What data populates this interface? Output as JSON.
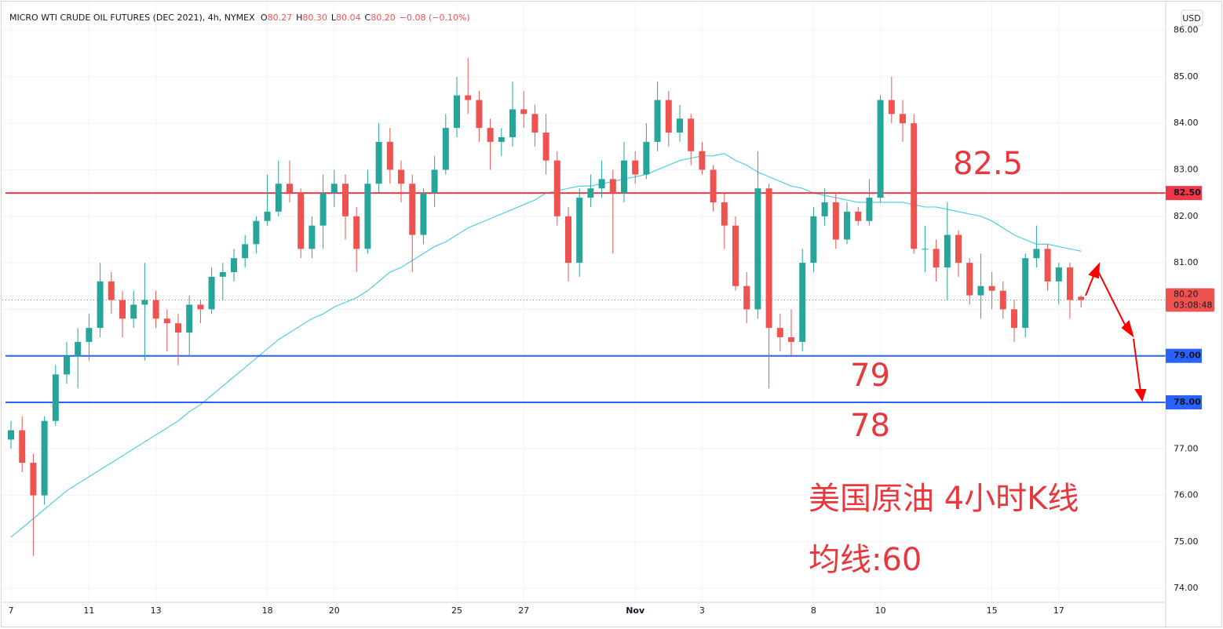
{
  "chart_data": {
    "type": "candlestick",
    "header": {
      "title": "MICRO WTI CRUDE OIL FUTURES (DEC 2021), 4h, NYMEX",
      "o_label": "O",
      "o": "80.27",
      "h_label": "H",
      "h": "80.30",
      "l_label": "L",
      "l": "80.04",
      "c_label": "C",
      "c": "80.20",
      "change": "−0.08 (−0.10%)"
    },
    "currency": "USD",
    "categories": [
      "7",
      null,
      null,
      null,
      null,
      null,
      null,
      "11",
      null,
      null,
      null,
      null,
      null,
      "13",
      null,
      null,
      null,
      null,
      null,
      null,
      null,
      null,
      null,
      "18",
      null,
      null,
      null,
      null,
      null,
      "20",
      null,
      null,
      null,
      null,
      null,
      null,
      null,
      null,
      null,
      null,
      "25",
      null,
      null,
      null,
      null,
      null,
      "27",
      null,
      null,
      null,
      null,
      null,
      null,
      null,
      null,
      null,
      "Nov",
      null,
      null,
      null,
      null,
      null,
      "3",
      null,
      null,
      null,
      null,
      null,
      null,
      null,
      null,
      null,
      "8",
      null,
      null,
      null,
      null,
      null,
      "10",
      null,
      null,
      null,
      null,
      null,
      null,
      null,
      null,
      null,
      "15",
      null,
      null,
      null,
      null,
      null,
      "17",
      null,
      null
    ],
    "candles": [
      [
        77.2,
        77.6,
        77.0,
        77.4
      ],
      [
        77.4,
        77.7,
        76.5,
        76.7
      ],
      [
        76.7,
        76.9,
        74.7,
        76.0
      ],
      [
        76.0,
        77.7,
        75.8,
        77.6
      ],
      [
        77.6,
        78.8,
        77.5,
        78.6
      ],
      [
        78.6,
        79.3,
        78.4,
        79.0
      ],
      [
        79.0,
        79.6,
        78.3,
        79.3
      ],
      [
        79.3,
        79.9,
        78.9,
        79.6
      ],
      [
        79.6,
        81.0,
        79.4,
        80.6
      ],
      [
        80.6,
        80.8,
        79.9,
        80.2
      ],
      [
        80.2,
        80.4,
        79.4,
        79.8
      ],
      [
        79.8,
        80.4,
        79.6,
        80.1
      ],
      [
        80.1,
        81.0,
        78.9,
        80.2
      ],
      [
        80.2,
        80.4,
        79.6,
        79.8
      ],
      [
        79.8,
        80.0,
        79.1,
        79.7
      ],
      [
        79.7,
        79.9,
        78.8,
        79.5
      ],
      [
        79.5,
        80.3,
        79.0,
        80.1
      ],
      [
        80.1,
        80.2,
        79.7,
        80.0
      ],
      [
        80.0,
        80.9,
        79.9,
        80.7
      ],
      [
        80.7,
        81.0,
        80.2,
        80.8
      ],
      [
        80.8,
        81.3,
        80.6,
        81.1
      ],
      [
        81.1,
        81.6,
        80.9,
        81.4
      ],
      [
        81.4,
        82.0,
        81.2,
        81.9
      ],
      [
        81.9,
        82.9,
        81.8,
        82.1
      ],
      [
        82.1,
        83.2,
        82.0,
        82.7
      ],
      [
        82.7,
        83.2,
        82.3,
        82.5
      ],
      [
        82.5,
        82.6,
        81.1,
        81.3
      ],
      [
        81.3,
        82.0,
        81.1,
        81.8
      ],
      [
        81.8,
        82.9,
        81.3,
        82.5
      ],
      [
        82.5,
        83.0,
        82.2,
        82.7
      ],
      [
        82.7,
        82.9,
        81.5,
        82.0
      ],
      [
        82.0,
        82.2,
        80.8,
        81.3
      ],
      [
        81.3,
        83.0,
        81.2,
        82.7
      ],
      [
        82.7,
        84.0,
        82.5,
        83.6
      ],
      [
        83.6,
        83.9,
        82.7,
        83.0
      ],
      [
        83.0,
        83.2,
        82.3,
        82.7
      ],
      [
        82.7,
        82.9,
        80.8,
        81.6
      ],
      [
        81.6,
        82.6,
        81.4,
        82.5
      ],
      [
        82.5,
        83.3,
        82.2,
        83.0
      ],
      [
        83.0,
        84.2,
        82.9,
        83.9
      ],
      [
        83.9,
        85.0,
        83.7,
        84.6
      ],
      [
        84.6,
        85.4,
        84.2,
        84.5
      ],
      [
        84.5,
        84.7,
        83.6,
        83.9
      ],
      [
        83.9,
        84.1,
        83.0,
        83.6
      ],
      [
        83.6,
        83.9,
        83.3,
        83.7
      ],
      [
        83.7,
        84.9,
        83.5,
        84.3
      ],
      [
        84.3,
        84.7,
        83.9,
        84.2
      ],
      [
        84.2,
        84.4,
        83.5,
        83.8
      ],
      [
        83.8,
        84.2,
        82.9,
        83.2
      ],
      [
        83.2,
        83.4,
        81.8,
        82.0
      ],
      [
        82.0,
        82.2,
        80.6,
        81.0
      ],
      [
        81.0,
        82.6,
        80.7,
        82.4
      ],
      [
        82.4,
        82.9,
        82.2,
        82.6
      ],
      [
        82.6,
        83.2,
        82.4,
        82.8
      ],
      [
        82.8,
        83.0,
        81.2,
        82.5
      ],
      [
        82.5,
        83.6,
        82.3,
        83.2
      ],
      [
        83.2,
        83.4,
        82.7,
        82.9
      ],
      [
        82.9,
        84.0,
        82.8,
        83.6
      ],
      [
        83.6,
        84.9,
        83.4,
        84.5
      ],
      [
        84.5,
        84.7,
        83.5,
        83.8
      ],
      [
        83.8,
        84.4,
        83.6,
        84.1
      ],
      [
        84.1,
        84.2,
        83.1,
        83.4
      ],
      [
        83.4,
        83.6,
        82.9,
        83.0
      ],
      [
        83.0,
        83.1,
        82.1,
        82.3
      ],
      [
        82.3,
        82.5,
        81.3,
        81.8
      ],
      [
        81.8,
        82.0,
        80.4,
        80.5
      ],
      [
        80.5,
        80.8,
        79.7,
        80.0
      ],
      [
        80.0,
        83.4,
        79.8,
        82.6
      ],
      [
        82.6,
        82.7,
        78.3,
        79.6
      ],
      [
        79.6,
        79.9,
        79.1,
        79.4
      ],
      [
        79.4,
        80.0,
        79.0,
        79.3
      ],
      [
        79.3,
        81.3,
        79.1,
        81.0
      ],
      [
        81.0,
        82.2,
        80.8,
        82.0
      ],
      [
        82.0,
        82.6,
        81.8,
        82.3
      ],
      [
        82.3,
        82.5,
        81.3,
        81.5
      ],
      [
        81.5,
        82.3,
        81.4,
        82.1
      ],
      [
        82.1,
        82.2,
        81.8,
        81.9
      ],
      [
        81.9,
        82.8,
        81.8,
        82.4
      ],
      [
        82.4,
        84.6,
        82.3,
        84.5
      ],
      [
        84.5,
        85.0,
        84.0,
        84.2
      ],
      [
        84.2,
        84.5,
        83.6,
        84.0
      ],
      [
        84.0,
        84.2,
        81.2,
        81.3
      ],
      [
        81.3,
        81.8,
        80.8,
        81.3
      ],
      [
        81.3,
        81.5,
        80.6,
        80.9
      ],
      [
        80.9,
        82.3,
        80.2,
        81.6
      ],
      [
        81.6,
        81.7,
        80.7,
        81.0
      ],
      [
        81.0,
        81.1,
        80.1,
        80.3
      ],
      [
        80.3,
        81.2,
        79.8,
        80.5
      ],
      [
        80.5,
        80.8,
        80.0,
        80.4
      ],
      [
        80.4,
        80.6,
        79.8,
        80.0
      ],
      [
        80.0,
        80.2,
        79.3,
        79.6
      ],
      [
        79.6,
        81.2,
        79.4,
        81.1
      ],
      [
        81.1,
        81.8,
        80.9,
        81.3
      ],
      [
        81.3,
        81.4,
        80.4,
        80.6
      ],
      [
        80.6,
        81.0,
        80.1,
        80.9
      ],
      [
        80.9,
        81.0,
        79.8,
        80.2
      ],
      [
        80.27,
        80.3,
        80.04,
        80.2
      ]
    ],
    "up_color": "#26a69a",
    "down_color": "#ef5350",
    "ma": {
      "color": "#4dd0e1",
      "values": [
        75.1,
        75.3,
        75.5,
        75.7,
        75.9,
        76.1,
        76.25,
        76.4,
        76.55,
        76.7,
        76.85,
        77.0,
        77.15,
        77.3,
        77.45,
        77.6,
        77.8,
        77.95,
        78.15,
        78.35,
        78.55,
        78.75,
        78.95,
        79.15,
        79.35,
        79.5,
        79.65,
        79.8,
        79.9,
        80.05,
        80.15,
        80.25,
        80.4,
        80.6,
        80.8,
        80.9,
        81.05,
        81.2,
        81.35,
        81.45,
        81.6,
        81.75,
        81.85,
        81.95,
        82.05,
        82.15,
        82.25,
        82.35,
        82.5,
        82.55,
        82.6,
        82.65,
        82.65,
        82.7,
        82.75,
        82.8,
        82.85,
        82.9,
        83.0,
        83.1,
        83.2,
        83.25,
        83.3,
        83.3,
        83.35,
        83.2,
        83.1,
        82.95,
        82.85,
        82.75,
        82.65,
        82.6,
        82.5,
        82.45,
        82.4,
        82.35,
        82.3,
        82.3,
        82.3,
        82.3,
        82.3,
        82.25,
        82.2,
        82.2,
        82.15,
        82.1,
        82.05,
        82.0,
        81.9,
        81.75,
        81.6,
        81.5,
        81.4,
        81.4,
        81.35,
        81.3,
        81.25
      ]
    },
    "ylim": [
      73.7,
      86.6
    ],
    "yticks": [
      {
        "value": 86,
        "label": "86.00"
      },
      {
        "value": 85,
        "label": "85.00"
      },
      {
        "value": 84,
        "label": "84.00"
      },
      {
        "value": 83,
        "label": "83.00"
      },
      {
        "value": 82,
        "label": "82.00"
      },
      {
        "value": 81,
        "label": "81.00"
      },
      {
        "value": 80,
        "label": "80.00"
      },
      {
        "value": 79,
        "label": "79.00"
      },
      {
        "value": 78,
        "label": "78.00"
      },
      {
        "value": 77,
        "label": "77.00"
      },
      {
        "value": 76,
        "label": "76.00"
      },
      {
        "value": 75,
        "label": "75.00"
      },
      {
        "value": 74,
        "label": "74.00"
      }
    ],
    "grid": true,
    "levels": [
      {
        "value": 82.5,
        "label": "82.50",
        "color": "#f23645"
      },
      {
        "value": 79,
        "label": "79.00",
        "color": "#2962ff"
      },
      {
        "value": 78,
        "label": "78.00",
        "color": "#2962ff"
      }
    ],
    "last": {
      "value": 80.2,
      "label": "80.20",
      "countdown": "03:08:48",
      "color": "#ef5350"
    },
    "annotations": [
      "82.5",
      "79",
      "78",
      "美国原油 4小时K线",
      "均线:60"
    ]
  }
}
